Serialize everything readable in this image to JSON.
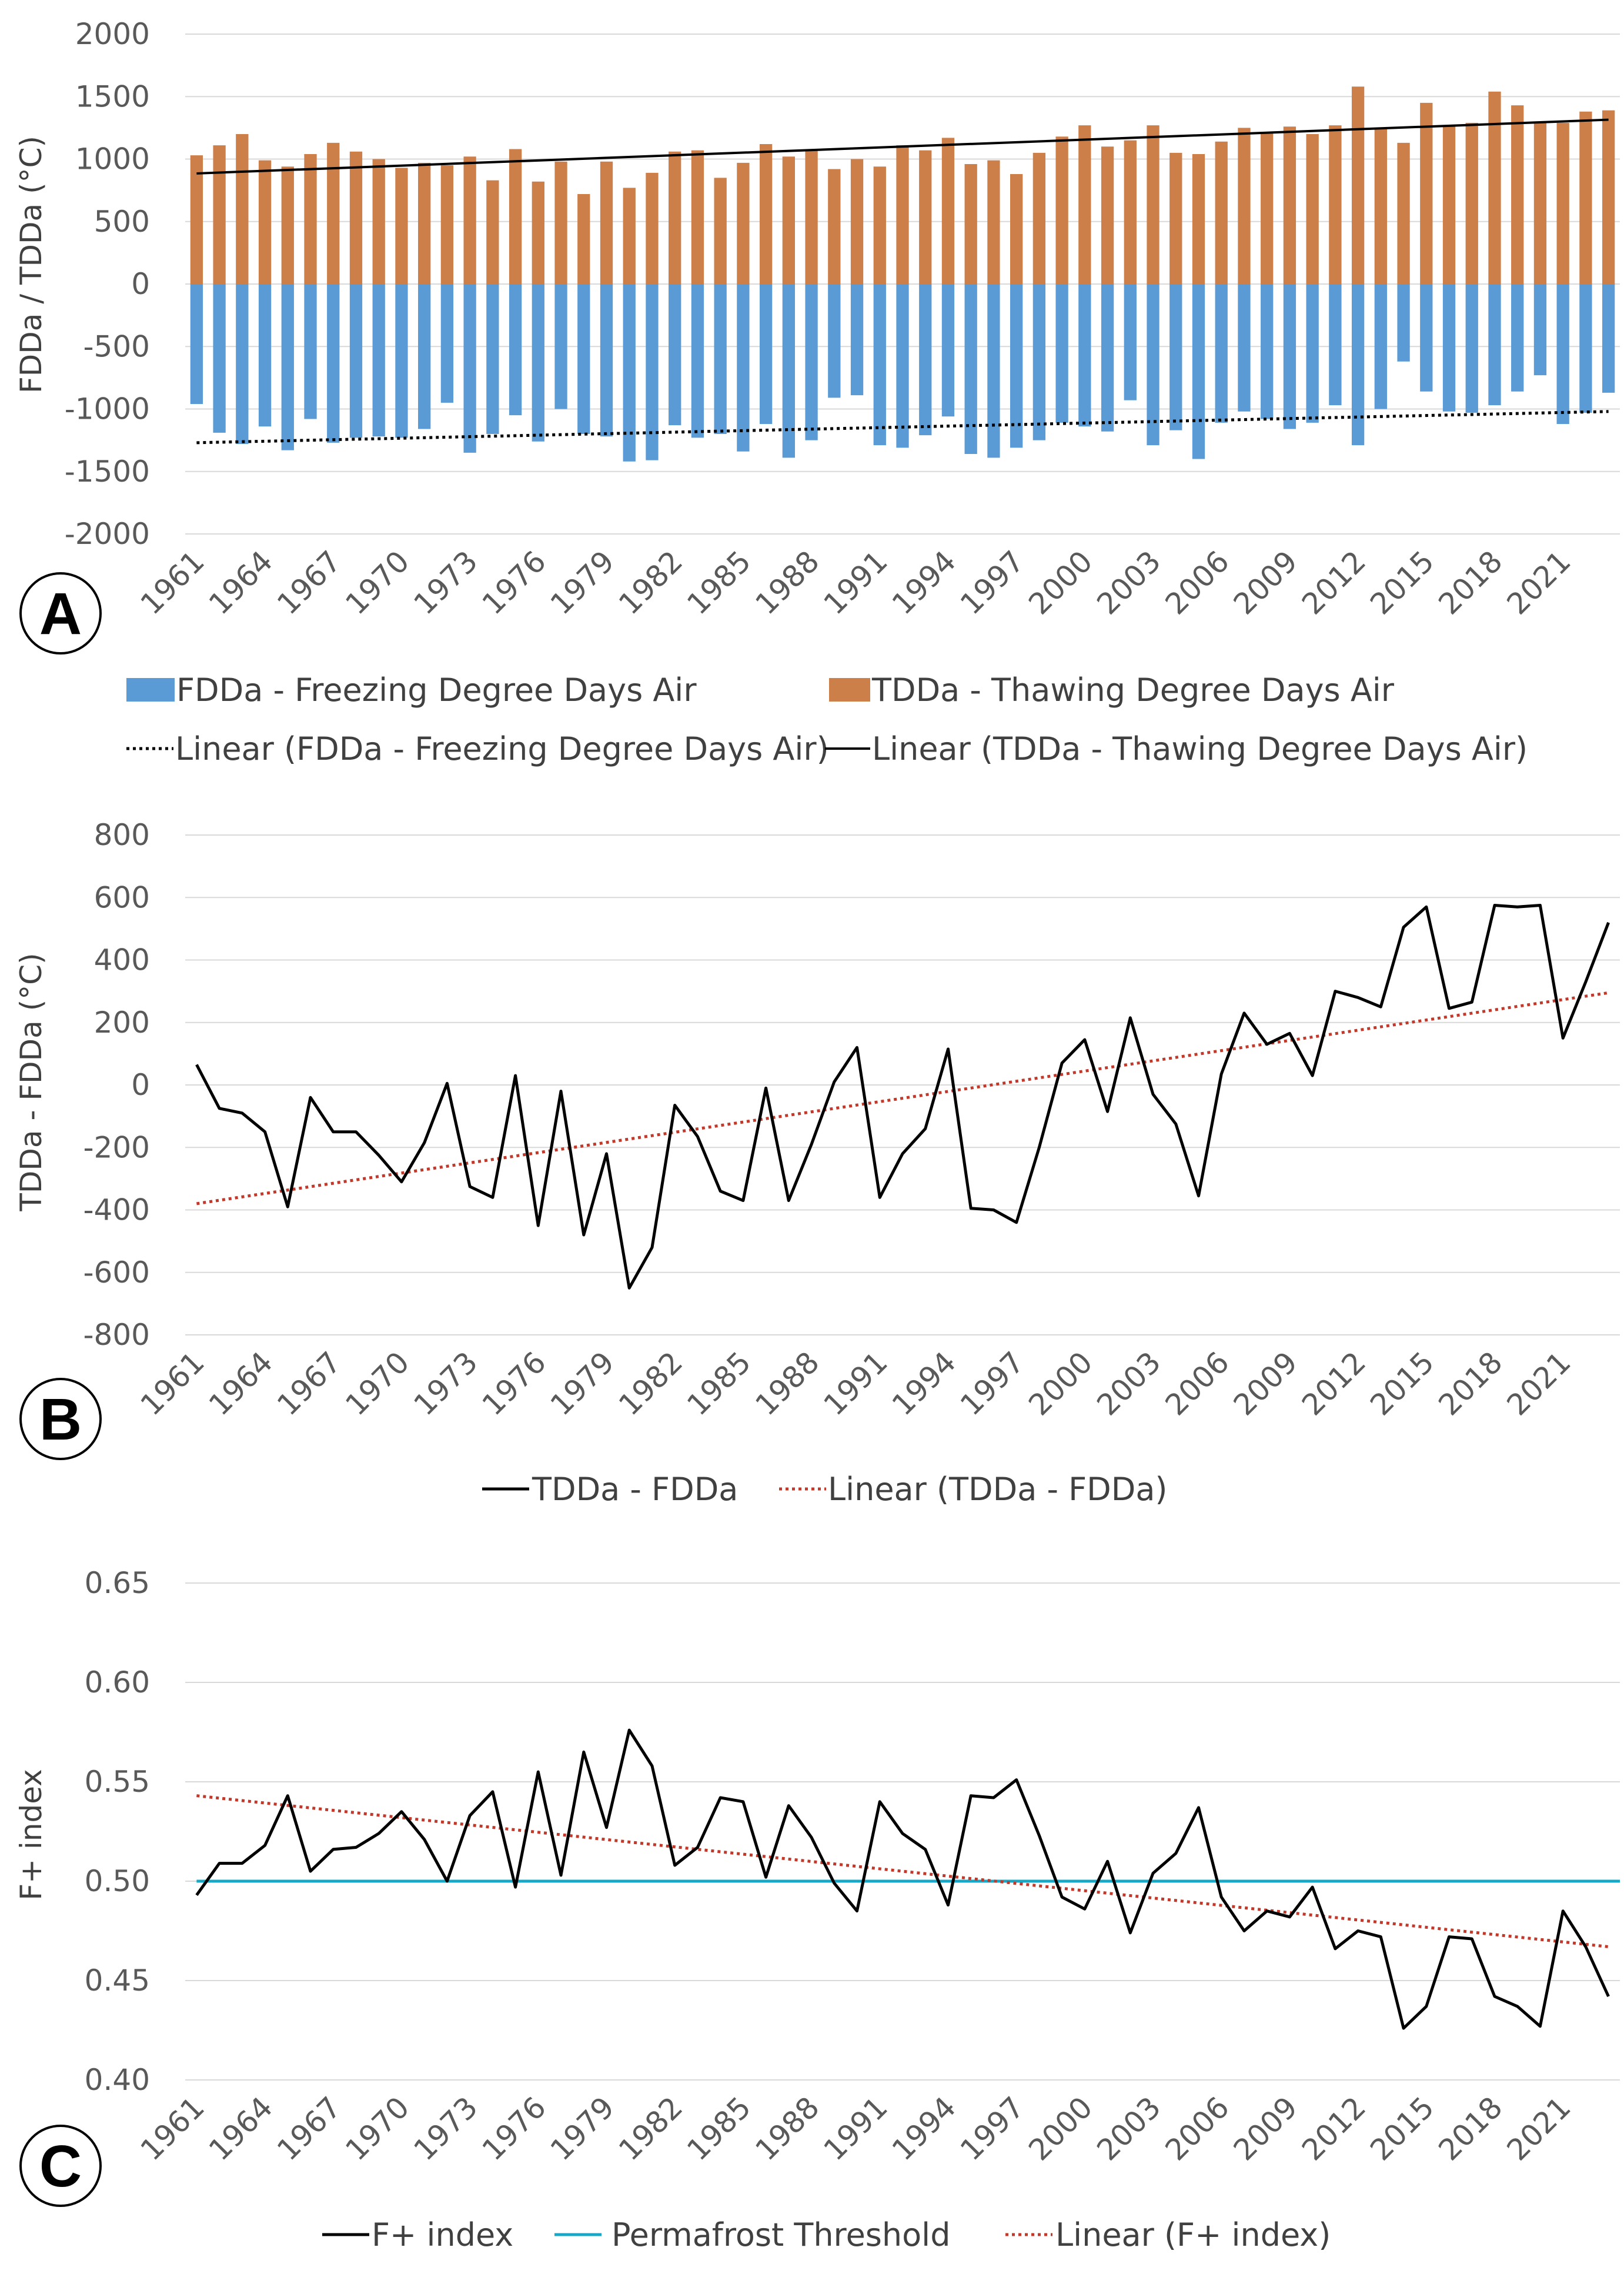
{
  "colors": {
    "fdda_bar": "#5b9bd5",
    "tdda_bar": "#cd7f4a",
    "line": "#000000",
    "linear_red": "#c0392b",
    "threshold": "#17a8c8",
    "grid": "#d9d9d9"
  },
  "chart_data": [
    {
      "panel": "A",
      "type": "bar",
      "ylabel": "FDDa / TDDa (°C)",
      "ylim": [
        -2000,
        2000
      ],
      "yticks": [
        2000,
        1500,
        1000,
        500,
        0,
        -500,
        -1000,
        -1500,
        -2000
      ],
      "x_start": 1961,
      "x_end": 2023,
      "xticks": [
        "1961",
        "1964",
        "1967",
        "1970",
        "1973",
        "1976",
        "1979",
        "1982",
        "1985",
        "1988",
        "1991",
        "1994",
        "1997",
        "2000",
        "2003",
        "2006",
        "2009",
        "2012",
        "2015",
        "2018",
        "2021"
      ],
      "series": [
        {
          "name": "TDDa - Thawing Degree Days Air",
          "values": [
            1030,
            1110,
            1200,
            990,
            940,
            1040,
            1130,
            1060,
            1000,
            930,
            970,
            950,
            1020,
            830,
            1080,
            820,
            980,
            720,
            980,
            770,
            890,
            1060,
            1070,
            850,
            970,
            1120,
            1020,
            1070,
            920,
            1000,
            940,
            1110,
            1070,
            1170,
            960,
            990,
            880,
            1050,
            1180,
            1270,
            1100,
            1150,
            1270,
            1050,
            1040,
            1140,
            1250,
            1210,
            1260,
            1200,
            1270,
            1580,
            1250,
            1130,
            1450,
            1270,
            1290,
            1540,
            1430,
            1300,
            1290,
            1380,
            1390
          ]
        },
        {
          "name": "FDDa - Freezing Degree Days Air",
          "values": [
            -960,
            -1190,
            -1280,
            -1140,
            -1330,
            -1080,
            -1270,
            -1230,
            -1220,
            -1230,
            -1160,
            -950,
            -1350,
            -1200,
            -1050,
            -1260,
            -1000,
            -1200,
            -1220,
            -1420,
            -1410,
            -1130,
            -1230,
            -1200,
            -1340,
            -1120,
            -1390,
            -1250,
            -910,
            -890,
            -1290,
            -1310,
            -1210,
            -1060,
            -1360,
            -1390,
            -1310,
            -1250,
            -1110,
            -1140,
            -1180,
            -930,
            -1290,
            -1170,
            -1400,
            -1110,
            -1020,
            -1080,
            -1160,
            -1110,
            -970,
            -1290,
            -1000,
            -620,
            -860,
            -1020,
            -1030,
            -970,
            -860,
            -730,
            -1120,
            -1030,
            -870
          ]
        }
      ],
      "trendlines": [
        {
          "name": "Linear (TDDa - Thawing Degree Days Air)",
          "start": 885,
          "end": 1315
        },
        {
          "name": "Linear (FDDa - Freezing Degree Days Air)",
          "start": -1270,
          "end": -1020
        }
      ],
      "legend": [
        "FDDa - Freezing Degree Days Air",
        "TDDa - Thawing Degree Days Air",
        "Linear (FDDa - Freezing Degree Days Air)",
        "Linear (TDDa - Thawing Degree Days Air)"
      ]
    },
    {
      "panel": "B",
      "type": "line",
      "ylabel": "TDDa - FDDa (°C)",
      "ylim": [
        -800,
        800
      ],
      "yticks": [
        800,
        600,
        400,
        200,
        0,
        -200,
        -400,
        -600,
        -800
      ],
      "x_start": 1961,
      "x_end": 2023,
      "xticks": [
        "1961",
        "1964",
        "1967",
        "1970",
        "1973",
        "1976",
        "1979",
        "1982",
        "1985",
        "1988",
        "1991",
        "1994",
        "1997",
        "2000",
        "2003",
        "2006",
        "2009",
        "2012",
        "2015",
        "2018",
        "2021"
      ],
      "series": [
        {
          "name": "TDDa - FDDa",
          "values": [
            65,
            -75,
            -90,
            -150,
            -390,
            -40,
            -150,
            -150,
            -225,
            -310,
            -185,
            5,
            -325,
            -360,
            30,
            -450,
            -20,
            -480,
            -220,
            -650,
            -520,
            -65,
            -165,
            -340,
            -370,
            -10,
            -370,
            -190,
            10,
            120,
            -360,
            -220,
            -140,
            115,
            -395,
            -400,
            -440,
            -200,
            70,
            145,
            -85,
            215,
            -30,
            -125,
            -355,
            35,
            230,
            130,
            165,
            30,
            300,
            280,
            250,
            505,
            570,
            245,
            265,
            575,
            570,
            575,
            150,
            330,
            520
          ]
        }
      ],
      "trendlines": [
        {
          "name": "Linear (TDDa - FDDa)",
          "start": -380,
          "end": 295
        }
      ],
      "legend": [
        "TDDa - FDDa",
        "Linear (TDDa - FDDa)"
      ]
    },
    {
      "panel": "C",
      "type": "line",
      "ylabel": "F+ index",
      "ylim": [
        0.4,
        0.65
      ],
      "yticks": [
        "0.65",
        "0.60",
        "0.55",
        "0.50",
        "0.45",
        "0.40"
      ],
      "x_start": 1961,
      "x_end": 2023,
      "xticks": [
        "1961",
        "1964",
        "1967",
        "1970",
        "1973",
        "1976",
        "1979",
        "1982",
        "1985",
        "1988",
        "1991",
        "1994",
        "1997",
        "2000",
        "2003",
        "2006",
        "2009",
        "2012",
        "2015",
        "2018",
        "2021"
      ],
      "series": [
        {
          "name": "F+ index",
          "values": [
            0.493,
            0.509,
            0.509,
            0.518,
            0.543,
            0.505,
            0.516,
            0.517,
            0.524,
            0.535,
            0.521,
            0.5,
            0.533,
            0.545,
            0.497,
            0.555,
            0.503,
            0.565,
            0.527,
            0.576,
            0.558,
            0.508,
            0.517,
            0.542,
            0.54,
            0.502,
            0.538,
            0.522,
            0.499,
            0.485,
            0.54,
            0.524,
            0.516,
            0.488,
            0.543,
            0.542,
            0.551,
            0.523,
            0.492,
            0.486,
            0.51,
            0.474,
            0.504,
            0.514,
            0.537,
            0.492,
            0.475,
            0.485,
            0.482,
            0.497,
            0.466,
            0.475,
            0.472,
            0.426,
            0.437,
            0.472,
            0.471,
            0.442,
            0.437,
            0.427,
            0.485,
            0.467,
            0.442
          ]
        }
      ],
      "threshold": {
        "name": "Permafrost Threshold",
        "value": 0.5
      },
      "trendlines": [
        {
          "name": "Linear (F+ index)",
          "start": 0.543,
          "end": 0.467
        }
      ],
      "legend": [
        "F+ index",
        "Permafrost Threshold",
        "Linear (F+ index)"
      ]
    }
  ]
}
